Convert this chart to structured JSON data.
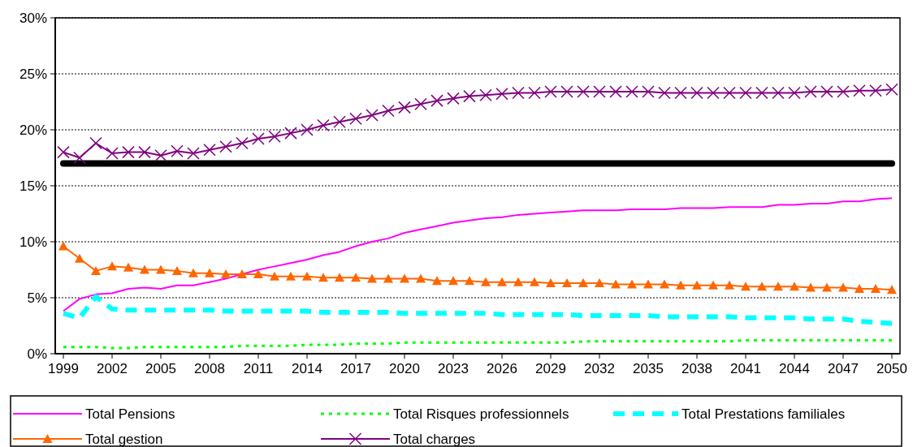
{
  "chart_data": {
    "type": "line",
    "categories": [
      "1999",
      null,
      null,
      "2002",
      null,
      null,
      "2005",
      null,
      null,
      "2008",
      null,
      null,
      "2011",
      null,
      null,
      "2014",
      null,
      null,
      "2017",
      null,
      null,
      "2020",
      null,
      null,
      "2023",
      null,
      null,
      "2026",
      null,
      null,
      "2029",
      null,
      null,
      "2032",
      null,
      null,
      "2035",
      null,
      null,
      "2038",
      null,
      null,
      "2041",
      null,
      null,
      "2044",
      null,
      null,
      "2047",
      null,
      null,
      "2050"
    ],
    "series": [
      {
        "name": "Total Pensions",
        "color": "#ff00ff",
        "marker": "none",
        "line_style": "solid",
        "values": [
          3.8,
          4.9,
          5.3,
          5.4,
          5.8,
          5.9,
          5.8,
          6.1,
          6.1,
          6.4,
          6.7,
          7.1,
          7.5,
          7.8,
          8.1,
          8.4,
          8.8,
          9.1,
          9.6,
          10.0,
          10.3,
          10.8,
          11.1,
          11.4,
          11.7,
          11.9,
          12.1,
          12.2,
          12.4,
          12.5,
          12.6,
          12.7,
          12.8,
          12.8,
          12.8,
          12.9,
          12.9,
          12.9,
          13.0,
          13.0,
          13.0,
          13.1,
          13.1,
          13.1,
          13.3,
          13.3,
          13.4,
          13.4,
          13.6,
          13.6,
          13.8,
          13.9
        ]
      },
      {
        "name": "Total Risques professionnels",
        "color": "#00ff00",
        "marker": "none",
        "line_style": "dotted",
        "values": [
          0.6,
          0.6,
          0.6,
          0.5,
          0.5,
          0.6,
          0.6,
          0.6,
          0.6,
          0.6,
          0.6,
          0.7,
          0.7,
          0.7,
          0.7,
          0.8,
          0.8,
          0.8,
          0.9,
          0.9,
          0.9,
          1.0,
          1.0,
          1.0,
          1.0,
          1.0,
          1.0,
          1.0,
          1.0,
          1.0,
          1.0,
          1.0,
          1.1,
          1.1,
          1.1,
          1.1,
          1.1,
          1.1,
          1.1,
          1.1,
          1.1,
          1.1,
          1.2,
          1.2,
          1.2,
          1.2,
          1.2,
          1.2,
          1.2,
          1.2,
          1.2,
          1.2
        ]
      },
      {
        "name": "Total Prestations familiales",
        "color": "#00ffff",
        "marker": "none",
        "line_style": "dashed",
        "values": [
          3.6,
          3.2,
          5.1,
          4.0,
          3.9,
          3.9,
          3.9,
          3.9,
          3.9,
          3.9,
          3.8,
          3.8,
          3.8,
          3.8,
          3.8,
          3.8,
          3.7,
          3.7,
          3.7,
          3.7,
          3.7,
          3.6,
          3.6,
          3.6,
          3.6,
          3.6,
          3.6,
          3.5,
          3.5,
          3.5,
          3.5,
          3.5,
          3.4,
          3.4,
          3.4,
          3.4,
          3.4,
          3.3,
          3.3,
          3.3,
          3.3,
          3.3,
          3.2,
          3.2,
          3.2,
          3.2,
          3.1,
          3.1,
          3.1,
          2.9,
          2.8,
          2.7
        ]
      },
      {
        "name": "Total gestion",
        "color": "#ff6600",
        "marker": "triangle",
        "line_style": "solid",
        "values": [
          9.6,
          8.5,
          7.4,
          7.8,
          7.7,
          7.5,
          7.5,
          7.4,
          7.2,
          7.2,
          7.1,
          7.1,
          7.1,
          6.9,
          6.9,
          6.9,
          6.8,
          6.8,
          6.8,
          6.7,
          6.7,
          6.7,
          6.7,
          6.5,
          6.5,
          6.5,
          6.4,
          6.4,
          6.4,
          6.4,
          6.3,
          6.3,
          6.3,
          6.3,
          6.2,
          6.2,
          6.2,
          6.2,
          6.1,
          6.1,
          6.1,
          6.1,
          6.0,
          6.0,
          6.0,
          6.0,
          5.9,
          5.9,
          5.9,
          5.8,
          5.8,
          5.7
        ]
      },
      {
        "name": "Total charges",
        "color": "#800080",
        "marker": "cross",
        "line_style": "solid",
        "values": [
          18.0,
          17.5,
          18.8,
          17.9,
          18.0,
          18.0,
          17.7,
          18.1,
          17.9,
          18.2,
          18.5,
          18.8,
          19.2,
          19.4,
          19.7,
          20.0,
          20.4,
          20.7,
          21.0,
          21.3,
          21.7,
          22.0,
          22.3,
          22.6,
          22.8,
          23.0,
          23.1,
          23.2,
          23.3,
          23.3,
          23.4,
          23.4,
          23.4,
          23.4,
          23.4,
          23.4,
          23.4,
          23.3,
          23.3,
          23.3,
          23.3,
          23.3,
          23.3,
          23.3,
          23.3,
          23.3,
          23.4,
          23.4,
          23.4,
          23.5,
          23.5,
          23.6
        ]
      }
    ],
    "ref_lines": [
      {
        "axis": "y",
        "value": 17,
        "color": "#000000"
      }
    ],
    "ylim": [
      0,
      30
    ],
    "yticks": [
      {
        "value": 0,
        "label": "0%"
      },
      {
        "value": 5,
        "label": "5%"
      },
      {
        "value": 10,
        "label": "10%"
      },
      {
        "value": 15,
        "label": "15%"
      },
      {
        "value": 20,
        "label": "20%"
      },
      {
        "value": 25,
        "label": "25%"
      },
      {
        "value": 30,
        "label": "30%"
      }
    ],
    "grid": "y",
    "legend": "bottom"
  }
}
